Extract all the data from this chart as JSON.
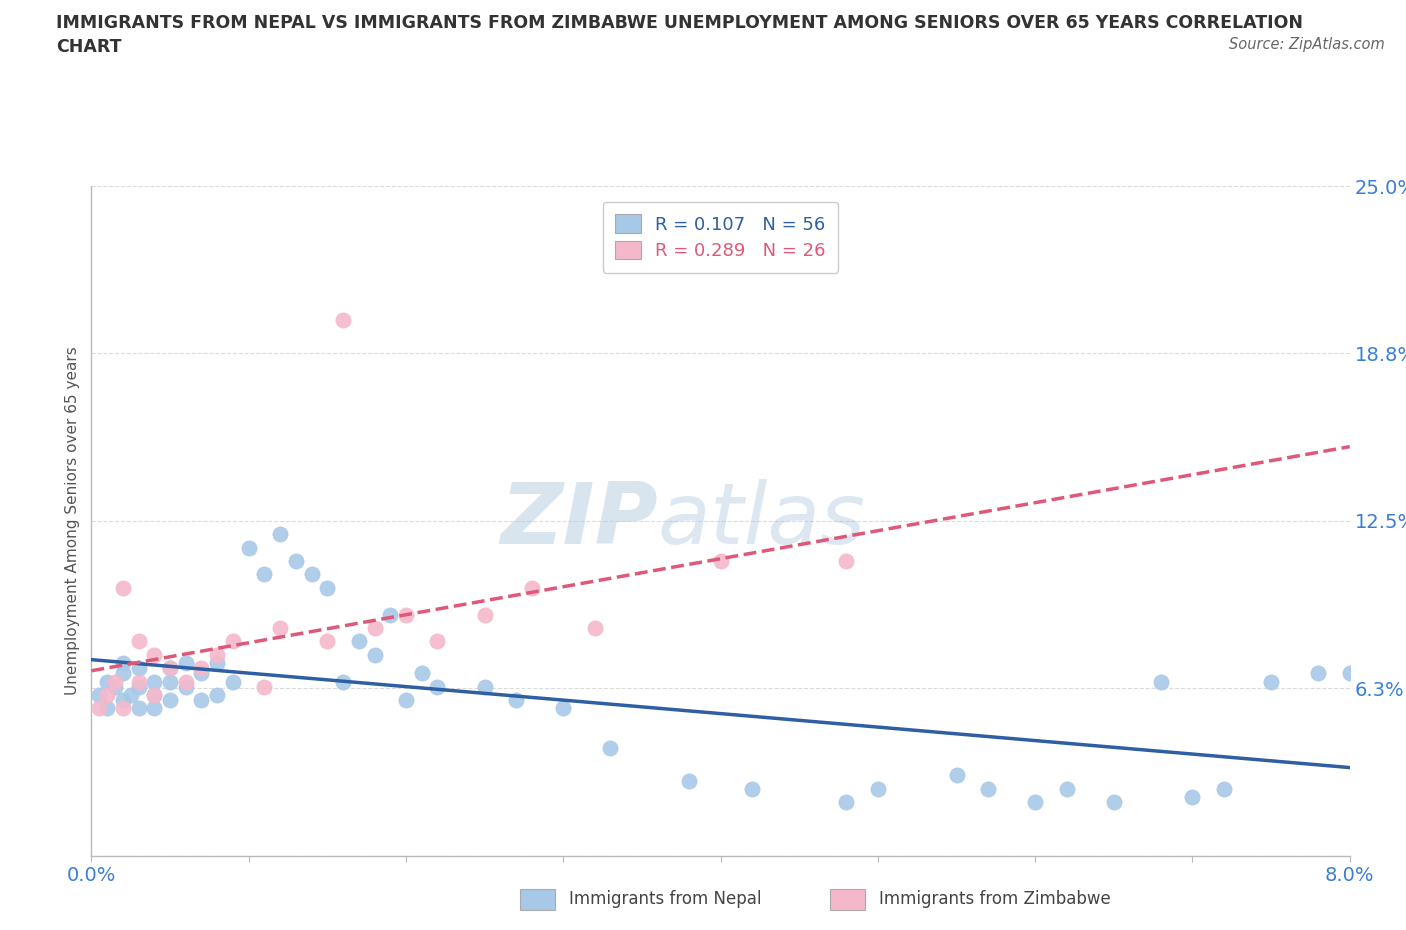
{
  "title": "IMMIGRANTS FROM NEPAL VS IMMIGRANTS FROM ZIMBABWE UNEMPLOYMENT AMONG SENIORS OVER 65 YEARS CORRELATION\nCHART",
  "source": "Source: ZipAtlas.com",
  "xlabel_nepal": "Immigrants from Nepal",
  "xlabel_zimbabwe": "Immigrants from Zimbabwe",
  "ylabel": "Unemployment Among Seniors over 65 years",
  "x_nepal": [
    0.0005,
    0.001,
    0.001,
    0.0015,
    0.002,
    0.002,
    0.002,
    0.0025,
    0.003,
    0.003,
    0.003,
    0.004,
    0.004,
    0.004,
    0.005,
    0.005,
    0.005,
    0.006,
    0.006,
    0.007,
    0.007,
    0.008,
    0.008,
    0.009,
    0.01,
    0.011,
    0.012,
    0.013,
    0.014,
    0.015,
    0.016,
    0.017,
    0.018,
    0.019,
    0.02,
    0.021,
    0.022,
    0.025,
    0.027,
    0.03,
    0.033,
    0.038,
    0.042,
    0.048,
    0.05,
    0.055,
    0.057,
    0.06,
    0.062,
    0.065,
    0.068,
    0.07,
    0.072,
    0.075,
    0.078,
    0.08
  ],
  "y_nepal": [
    0.06,
    0.055,
    0.065,
    0.063,
    0.058,
    0.068,
    0.072,
    0.06,
    0.055,
    0.063,
    0.07,
    0.06,
    0.065,
    0.055,
    0.07,
    0.065,
    0.058,
    0.072,
    0.063,
    0.068,
    0.058,
    0.072,
    0.06,
    0.065,
    0.115,
    0.105,
    0.12,
    0.11,
    0.105,
    0.1,
    0.065,
    0.08,
    0.075,
    0.09,
    0.058,
    0.068,
    0.063,
    0.063,
    0.058,
    0.055,
    0.04,
    0.028,
    0.025,
    0.02,
    0.025,
    0.03,
    0.025,
    0.02,
    0.025,
    0.02,
    0.065,
    0.022,
    0.025,
    0.065,
    0.068,
    0.068
  ],
  "x_zimbabwe": [
    0.0005,
    0.001,
    0.0015,
    0.002,
    0.002,
    0.003,
    0.003,
    0.004,
    0.004,
    0.005,
    0.006,
    0.007,
    0.008,
    0.009,
    0.011,
    0.012,
    0.015,
    0.016,
    0.018,
    0.02,
    0.022,
    0.025,
    0.028,
    0.032,
    0.04,
    0.048
  ],
  "y_zimbabwe": [
    0.055,
    0.06,
    0.065,
    0.055,
    0.1,
    0.065,
    0.08,
    0.06,
    0.075,
    0.07,
    0.065,
    0.07,
    0.075,
    0.08,
    0.063,
    0.085,
    0.08,
    0.2,
    0.085,
    0.09,
    0.08,
    0.09,
    0.1,
    0.085,
    0.11,
    0.11
  ],
  "nepal_R": 0.107,
  "nepal_N": 56,
  "zimbabwe_R": 0.289,
  "zimbabwe_N": 26,
  "nepal_color": "#a8c8e8",
  "zimbabwe_color": "#f5b8cb",
  "nepal_line_color": "#2e5fa3",
  "zimbabwe_line_color": "#e05878",
  "xlim": [
    0.0,
    0.08
  ],
  "ylim": [
    0.0,
    0.25
  ],
  "yticks": [
    0.0,
    0.0625,
    0.125,
    0.1875,
    0.25
  ],
  "ytick_labels": [
    "",
    "6.3%",
    "12.5%",
    "18.8%",
    "25.0%"
  ],
  "xticks": [
    0.0,
    0.01,
    0.02,
    0.03,
    0.04,
    0.05,
    0.06,
    0.07,
    0.08
  ],
  "xtick_labels": [
    "0.0%",
    "",
    "",
    "",
    "",
    "",
    "",
    "",
    "8.0%"
  ],
  "watermark_zip": "ZIP",
  "watermark_atlas": "atlas",
  "background_color": "#ffffff",
  "grid_color": "#cccccc"
}
